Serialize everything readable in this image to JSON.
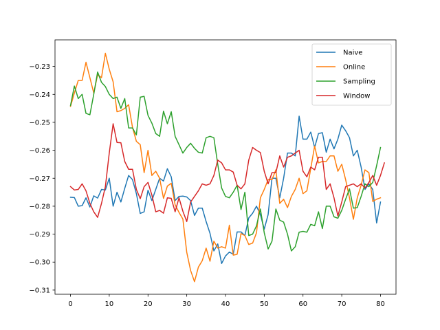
{
  "chart_data": {
    "type": "line",
    "title": "",
    "xlabel": "",
    "ylabel": "",
    "xlim": [
      -4,
      84
    ],
    "ylim": [
      -0.3115,
      -0.2205
    ],
    "xticks": [
      0,
      10,
      20,
      30,
      40,
      50,
      60,
      70,
      80
    ],
    "yticks": [
      -0.31,
      -0.3,
      -0.29,
      -0.28,
      -0.27,
      -0.26,
      -0.25,
      -0.24,
      -0.23
    ],
    "grid": false,
    "legend_position": "upper-right",
    "series": [
      {
        "name": "Naive",
        "color": "#1f77b4",
        "values": [
          -0.2768,
          -0.2769,
          -0.28,
          -0.2798,
          -0.277,
          -0.2803,
          -0.2763,
          -0.2771,
          -0.274,
          -0.2742,
          -0.27,
          -0.28,
          -0.275,
          -0.2785,
          -0.2736,
          -0.269,
          -0.2705,
          -0.2755,
          -0.2826,
          -0.282,
          -0.2743,
          -0.278,
          -0.274,
          -0.27,
          -0.271,
          -0.2666,
          -0.2695,
          -0.278,
          -0.2765,
          -0.2764,
          -0.2767,
          -0.278,
          -0.2833,
          -0.2807,
          -0.2807,
          -0.2855,
          -0.2897,
          -0.296,
          -0.2935,
          -0.3005,
          -0.2978,
          -0.2964,
          -0.2972,
          -0.2892,
          -0.2892,
          -0.2905,
          -0.2842,
          -0.2825,
          -0.28,
          -0.283,
          -0.2882,
          -0.283,
          -0.27,
          -0.27,
          -0.277,
          -0.27,
          -0.261,
          -0.261,
          -0.262,
          -0.2478,
          -0.256,
          -0.256,
          -0.2535,
          -0.259,
          -0.254,
          -0.2537,
          -0.2607,
          -0.256,
          -0.2595,
          -0.256,
          -0.251,
          -0.253,
          -0.2555,
          -0.262,
          -0.26,
          -0.266,
          -0.274,
          -0.272,
          -0.274,
          -0.286,
          -0.2785
        ]
      },
      {
        "name": "Online",
        "color": "#ff7f0e",
        "values": [
          -0.2443,
          -0.2395,
          -0.235,
          -0.235,
          -0.2285,
          -0.234,
          -0.2395,
          -0.233,
          -0.234,
          -0.2253,
          -0.231,
          -0.2355,
          -0.2462,
          -0.2458,
          -0.245,
          -0.2437,
          -0.2518,
          -0.2568,
          -0.258,
          -0.268,
          -0.26,
          -0.269,
          -0.2675,
          -0.27,
          -0.2772,
          -0.2728,
          -0.2718,
          -0.2795,
          -0.2822,
          -0.2846,
          -0.2965,
          -0.303,
          -0.307,
          -0.3018,
          -0.2995,
          -0.295,
          -0.2997,
          -0.2925,
          -0.295,
          -0.2945,
          -0.295,
          -0.2868,
          -0.2975,
          -0.2972,
          -0.2898,
          -0.2905,
          -0.2937,
          -0.2932,
          -0.2895,
          -0.277,
          -0.274,
          -0.2705,
          -0.2705,
          -0.267,
          -0.279,
          -0.2775,
          -0.2805,
          -0.2765,
          -0.274,
          -0.27,
          -0.2755,
          -0.2745,
          -0.2665,
          -0.2585,
          -0.2645,
          -0.264,
          -0.264,
          -0.262,
          -0.262,
          -0.2675,
          -0.265,
          -0.2705,
          -0.277,
          -0.2847,
          -0.277,
          -0.2725,
          -0.267,
          -0.268,
          -0.2783,
          -0.2775,
          -0.277
        ]
      },
      {
        "name": "Sampling",
        "color": "#2ca02c",
        "values": [
          -0.244,
          -0.237,
          -0.2415,
          -0.24,
          -0.2468,
          -0.2473,
          -0.24,
          -0.232,
          -0.2357,
          -0.2372,
          -0.24,
          -0.2415,
          -0.241,
          -0.245,
          -0.2415,
          -0.252,
          -0.252,
          -0.2545,
          -0.241,
          -0.2407,
          -0.2475,
          -0.2503,
          -0.254,
          -0.255,
          -0.246,
          -0.2505,
          -0.2462,
          -0.255,
          -0.258,
          -0.261,
          -0.259,
          -0.2575,
          -0.2593,
          -0.2607,
          -0.261,
          -0.2555,
          -0.255,
          -0.2555,
          -0.265,
          -0.2735,
          -0.2765,
          -0.277,
          -0.275,
          -0.2725,
          -0.2812,
          -0.275,
          -0.2905,
          -0.29,
          -0.287,
          -0.281,
          -0.2895,
          -0.2953,
          -0.2925,
          -0.281,
          -0.285,
          -0.2857,
          -0.29,
          -0.296,
          -0.2945,
          -0.2893,
          -0.289,
          -0.2893,
          -0.2865,
          -0.287,
          -0.282,
          -0.288,
          -0.28,
          -0.28,
          -0.2838,
          -0.2843,
          -0.2815,
          -0.2775,
          -0.2738,
          -0.2807,
          -0.2805,
          -0.2765,
          -0.272,
          -0.273,
          -0.2715,
          -0.2655,
          -0.259
        ]
      },
      {
        "name": "Window",
        "color": "#d62728",
        "values": [
          -0.273,
          -0.2742,
          -0.274,
          -0.272,
          -0.2745,
          -0.279,
          -0.282,
          -0.284,
          -0.279,
          -0.273,
          -0.261,
          -0.2505,
          -0.2572,
          -0.2573,
          -0.264,
          -0.2668,
          -0.2668,
          -0.274,
          -0.2773,
          -0.273,
          -0.2715,
          -0.276,
          -0.282,
          -0.2815,
          -0.2825,
          -0.277,
          -0.2772,
          -0.282,
          -0.277,
          -0.2818,
          -0.2855,
          -0.2785,
          -0.2765,
          -0.2745,
          -0.272,
          -0.2725,
          -0.272,
          -0.269,
          -0.2635,
          -0.2645,
          -0.267,
          -0.267,
          -0.2678,
          -0.2725,
          -0.2738,
          -0.272,
          -0.2635,
          -0.259,
          -0.26,
          -0.2608,
          -0.2675,
          -0.272,
          -0.268,
          -0.268,
          -0.262,
          -0.266,
          -0.2625,
          -0.262,
          -0.261,
          -0.26,
          -0.2675,
          -0.2695,
          -0.266,
          -0.267,
          -0.2625,
          -0.2625,
          -0.274,
          -0.272,
          -0.277,
          -0.2835,
          -0.2785,
          -0.273,
          -0.2725,
          -0.272,
          -0.273,
          -0.272,
          -0.2735,
          -0.2715,
          -0.269,
          -0.2725,
          -0.269,
          -0.2645
        ]
      }
    ]
  }
}
